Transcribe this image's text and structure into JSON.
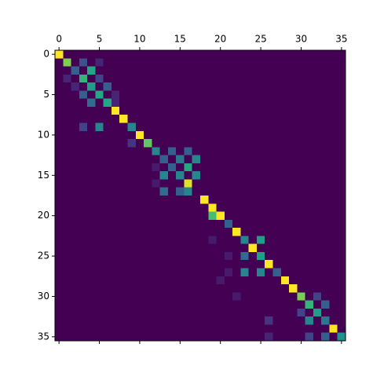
{
  "chart_data": {
    "type": "heatmap",
    "colormap": "viridis",
    "xlim": [
      -0.5,
      35.5
    ],
    "ylim": [
      35.5,
      -0.5
    ],
    "xticks": [
      0,
      5,
      10,
      15,
      20,
      25,
      30,
      35
    ],
    "yticks": [
      0,
      5,
      10,
      15,
      20,
      25,
      30,
      35
    ],
    "values": [
      [
        1,
        0,
        0,
        0,
        0,
        0,
        0,
        0,
        0,
        0,
        0,
        0,
        0,
        0,
        0,
        0,
        0,
        0,
        0,
        0,
        0,
        0,
        0,
        0,
        0,
        0,
        0,
        0,
        0,
        0,
        0,
        0,
        0,
        0,
        0,
        0
      ],
      [
        0,
        0.8,
        0,
        0.25,
        0,
        0.1,
        0,
        0,
        0,
        0,
        0,
        0,
        0,
        0,
        0,
        0,
        0,
        0,
        0,
        0,
        0,
        0,
        0,
        0,
        0,
        0,
        0,
        0,
        0,
        0,
        0,
        0,
        0,
        0,
        0,
        0
      ],
      [
        0,
        0,
        0.3,
        0,
        0.6,
        0,
        0,
        0,
        0,
        0,
        0,
        0,
        0,
        0,
        0,
        0,
        0,
        0,
        0,
        0,
        0,
        0,
        0,
        0,
        0,
        0,
        0,
        0,
        0,
        0,
        0,
        0,
        0,
        0,
        0,
        0
      ],
      [
        0,
        0.1,
        0,
        0.65,
        0,
        0.2,
        0,
        0,
        0,
        0,
        0,
        0,
        0,
        0,
        0,
        0,
        0,
        0,
        0,
        0,
        0,
        0,
        0,
        0,
        0,
        0,
        0,
        0,
        0,
        0,
        0,
        0,
        0,
        0,
        0,
        0
      ],
      [
        0,
        0,
        0.1,
        0,
        0.55,
        0,
        0.3,
        0,
        0,
        0,
        0,
        0,
        0,
        0,
        0,
        0,
        0,
        0,
        0,
        0,
        0,
        0,
        0,
        0,
        0,
        0,
        0,
        0,
        0,
        0,
        0,
        0,
        0,
        0,
        0,
        0
      ],
      [
        0,
        0,
        0,
        0.3,
        0,
        0.6,
        0,
        0.1,
        0,
        0,
        0,
        0,
        0,
        0,
        0,
        0,
        0,
        0,
        0,
        0,
        0,
        0,
        0,
        0,
        0,
        0,
        0,
        0,
        0,
        0,
        0,
        0,
        0,
        0,
        0,
        0
      ],
      [
        0,
        0,
        0,
        0,
        0.35,
        0,
        0.6,
        0.1,
        0,
        0,
        0,
        0,
        0,
        0,
        0,
        0,
        0,
        0,
        0,
        0,
        0,
        0,
        0,
        0,
        0,
        0,
        0,
        0,
        0,
        0,
        0,
        0,
        0,
        0,
        0,
        0
      ],
      [
        0,
        0,
        0,
        0,
        0,
        0,
        0,
        1,
        0,
        0,
        0,
        0,
        0,
        0,
        0,
        0,
        0,
        0,
        0,
        0,
        0,
        0,
        0,
        0,
        0,
        0,
        0,
        0,
        0,
        0,
        0,
        0,
        0,
        0,
        0,
        0
      ],
      [
        0,
        0,
        0,
        0,
        0,
        0,
        0,
        0,
        1,
        0,
        0,
        0,
        0,
        0,
        0,
        0,
        0,
        0,
        0,
        0,
        0,
        0,
        0,
        0,
        0,
        0,
        0,
        0,
        0,
        0,
        0,
        0,
        0,
        0,
        0,
        0
      ],
      [
        0,
        0,
        0,
        0.2,
        0,
        0.45,
        0,
        0,
        0,
        0.45,
        0,
        0,
        0,
        0,
        0,
        0,
        0,
        0,
        0,
        0,
        0,
        0,
        0,
        0,
        0,
        0,
        0,
        0,
        0,
        0,
        0,
        0,
        0,
        0,
        0,
        0
      ],
      [
        0,
        0,
        0,
        0,
        0,
        0,
        0,
        0,
        0,
        0,
        1,
        0,
        0,
        0,
        0,
        0,
        0,
        0,
        0,
        0,
        0,
        0,
        0,
        0,
        0,
        0,
        0,
        0,
        0,
        0,
        0,
        0,
        0,
        0,
        0,
        0
      ],
      [
        0,
        0,
        0,
        0,
        0,
        0,
        0,
        0,
        0,
        0.15,
        0,
        0.75,
        0,
        0,
        0,
        0,
        0,
        0,
        0,
        0,
        0,
        0,
        0,
        0,
        0,
        0,
        0,
        0,
        0,
        0,
        0,
        0,
        0,
        0,
        0,
        0
      ],
      [
        0,
        0,
        0,
        0,
        0,
        0,
        0,
        0,
        0,
        0,
        0,
        0,
        0.45,
        0,
        0.3,
        0,
        0.3,
        0,
        0,
        0,
        0,
        0,
        0,
        0,
        0,
        0,
        0,
        0,
        0,
        0,
        0,
        0,
        0,
        0,
        0,
        0
      ],
      [
        0,
        0,
        0,
        0,
        0,
        0,
        0,
        0,
        0,
        0,
        0,
        0,
        0,
        0.3,
        0,
        0.4,
        0,
        0.45,
        0,
        0,
        0,
        0,
        0,
        0,
        0,
        0,
        0,
        0,
        0,
        0,
        0,
        0,
        0,
        0,
        0,
        0
      ],
      [
        0,
        0,
        0,
        0,
        0,
        0,
        0,
        0,
        0,
        0,
        0,
        0,
        0.07,
        0,
        0.3,
        0,
        0.6,
        0,
        0,
        0,
        0,
        0,
        0,
        0,
        0,
        0,
        0,
        0,
        0,
        0,
        0,
        0,
        0,
        0,
        0,
        0
      ],
      [
        0,
        0,
        0,
        0,
        0,
        0,
        0,
        0,
        0,
        0,
        0,
        0,
        0,
        0.45,
        0,
        0.45,
        0,
        0.45,
        0,
        0,
        0,
        0,
        0,
        0,
        0,
        0,
        0,
        0,
        0,
        0,
        0,
        0,
        0,
        0,
        0,
        0
      ],
      [
        0,
        0,
        0,
        0,
        0,
        0,
        0,
        0,
        0,
        0,
        0,
        0,
        0.07,
        0,
        0,
        0,
        0.95,
        0,
        0,
        0,
        0,
        0,
        0,
        0,
        0,
        0,
        0,
        0,
        0,
        0,
        0,
        0,
        0,
        0,
        0,
        0
      ],
      [
        0,
        0,
        0,
        0,
        0,
        0,
        0,
        0,
        0,
        0,
        0,
        0,
        0,
        0.35,
        0,
        0.3,
        0.45,
        0,
        0,
        0,
        0,
        0,
        0,
        0,
        0,
        0,
        0,
        0,
        0,
        0,
        0,
        0,
        0,
        0,
        0,
        0
      ],
      [
        0,
        0,
        0,
        0,
        0,
        0,
        0,
        0,
        0,
        0,
        0,
        0,
        0,
        0,
        0,
        0,
        0,
        0,
        1,
        0,
        0,
        0,
        0,
        0,
        0,
        0,
        0,
        0,
        0,
        0,
        0,
        0,
        0,
        0,
        0,
        0
      ],
      [
        0,
        0,
        0,
        0,
        0,
        0,
        0,
        0,
        0,
        0,
        0,
        0,
        0,
        0,
        0,
        0,
        0,
        0,
        0,
        1,
        0,
        0,
        0,
        0,
        0,
        0,
        0,
        0,
        0,
        0,
        0,
        0,
        0,
        0,
        0,
        0
      ],
      [
        0,
        0,
        0,
        0,
        0,
        0,
        0,
        0,
        0,
        0,
        0,
        0,
        0,
        0,
        0,
        0,
        0,
        0,
        0,
        0.7,
        1,
        0,
        0,
        0,
        0,
        0,
        0,
        0,
        0,
        0,
        0,
        0,
        0,
        0,
        0,
        0
      ],
      [
        0,
        0,
        0,
        0,
        0,
        0,
        0,
        0,
        0,
        0,
        0,
        0,
        0,
        0,
        0,
        0,
        0,
        0,
        0,
        0,
        0,
        0.3,
        0,
        0,
        0,
        0,
        0,
        0,
        0,
        0,
        0,
        0,
        0,
        0,
        0,
        0
      ],
      [
        0,
        0,
        0,
        0,
        0,
        0,
        0,
        0,
        0,
        0,
        0,
        0,
        0,
        0,
        0,
        0,
        0,
        0,
        0,
        0,
        0,
        0,
        1,
        0,
        0,
        0,
        0,
        0,
        0,
        0,
        0,
        0,
        0,
        0,
        0,
        0
      ],
      [
        0,
        0,
        0,
        0,
        0,
        0,
        0,
        0,
        0,
        0,
        0,
        0,
        0,
        0,
        0,
        0,
        0,
        0,
        0,
        0.07,
        0,
        0,
        0,
        0.45,
        0,
        0.55,
        0,
        0,
        0,
        0,
        0,
        0,
        0,
        0,
        0,
        0
      ],
      [
        0,
        0,
        0,
        0,
        0,
        0,
        0,
        0,
        0,
        0,
        0,
        0,
        0,
        0,
        0,
        0,
        0,
        0,
        0,
        0,
        0,
        0,
        0,
        0,
        1,
        0,
        0,
        0,
        0,
        0,
        0,
        0,
        0,
        0,
        0,
        0
      ],
      [
        0,
        0,
        0,
        0,
        0,
        0,
        0,
        0,
        0,
        0,
        0,
        0,
        0,
        0,
        0,
        0,
        0,
        0,
        0,
        0,
        0,
        0.07,
        0,
        0.35,
        0,
        0.55,
        0,
        0,
        0,
        0,
        0,
        0,
        0,
        0,
        0,
        0
      ],
      [
        0,
        0,
        0,
        0,
        0,
        0,
        0,
        0,
        0,
        0,
        0,
        0,
        0,
        0,
        0,
        0,
        0,
        0,
        0,
        0,
        0,
        0,
        0,
        0,
        0,
        0,
        1,
        0,
        0,
        0,
        0,
        0,
        0,
        0,
        0,
        0
      ],
      [
        0,
        0,
        0,
        0,
        0,
        0,
        0,
        0,
        0,
        0,
        0,
        0,
        0,
        0,
        0,
        0,
        0,
        0,
        0,
        0,
        0,
        0.07,
        0,
        0.45,
        0,
        0.45,
        0,
        0.3,
        0,
        0,
        0,
        0,
        0,
        0,
        0,
        0
      ],
      [
        0,
        0,
        0,
        0,
        0,
        0,
        0,
        0,
        0,
        0,
        0,
        0,
        0,
        0,
        0,
        0,
        0,
        0,
        0,
        0,
        0.07,
        0,
        0,
        0,
        0,
        0,
        0,
        0,
        1,
        0,
        0,
        0,
        0,
        0,
        0,
        0
      ],
      [
        0,
        0,
        0,
        0,
        0,
        0,
        0,
        0,
        0,
        0,
        0,
        0,
        0,
        0,
        0,
        0,
        0,
        0,
        0,
        0,
        0,
        0,
        0,
        0,
        0,
        0,
        0,
        0,
        0,
        1,
        0,
        0,
        0,
        0,
        0,
        0
      ],
      [
        0,
        0,
        0,
        0,
        0,
        0,
        0,
        0,
        0,
        0,
        0,
        0,
        0,
        0,
        0,
        0,
        0,
        0,
        0,
        0,
        0,
        0,
        0.07,
        0,
        0,
        0,
        0,
        0,
        0,
        0,
        0.8,
        0,
        0.2,
        0,
        0,
        0
      ],
      [
        0,
        0,
        0,
        0,
        0,
        0,
        0,
        0,
        0,
        0,
        0,
        0,
        0,
        0,
        0,
        0,
        0,
        0,
        0,
        0,
        0,
        0,
        0,
        0,
        0,
        0,
        0,
        0,
        0,
        0,
        0,
        0.65,
        0,
        0.3,
        0,
        0
      ],
      [
        0,
        0,
        0,
        0,
        0,
        0,
        0,
        0,
        0,
        0,
        0,
        0,
        0,
        0,
        0,
        0,
        0,
        0,
        0,
        0,
        0,
        0,
        0,
        0,
        0,
        0,
        0,
        0,
        0,
        0,
        0.2,
        0,
        0.55,
        0,
        0,
        0
      ],
      [
        0,
        0,
        0,
        0,
        0,
        0,
        0,
        0,
        0,
        0,
        0,
        0,
        0,
        0,
        0,
        0,
        0,
        0,
        0,
        0,
        0,
        0,
        0,
        0,
        0,
        0,
        0.15,
        0,
        0,
        0,
        0,
        0.45,
        0,
        0.4,
        0,
        0
      ],
      [
        0,
        0,
        0,
        0,
        0,
        0,
        0,
        0,
        0,
        0,
        0,
        0,
        0,
        0,
        0,
        0,
        0,
        0,
        0,
        0,
        0,
        0,
        0,
        0,
        0,
        0,
        0,
        0,
        0,
        0,
        0,
        0,
        0,
        0,
        1,
        0
      ],
      [
        0,
        0,
        0,
        0,
        0,
        0,
        0,
        0,
        0,
        0,
        0,
        0,
        0,
        0,
        0,
        0,
        0,
        0,
        0,
        0,
        0,
        0,
        0,
        0,
        0,
        0,
        0.1,
        0,
        0,
        0,
        0,
        0.2,
        0,
        0.3,
        0,
        0.5
      ]
    ]
  }
}
